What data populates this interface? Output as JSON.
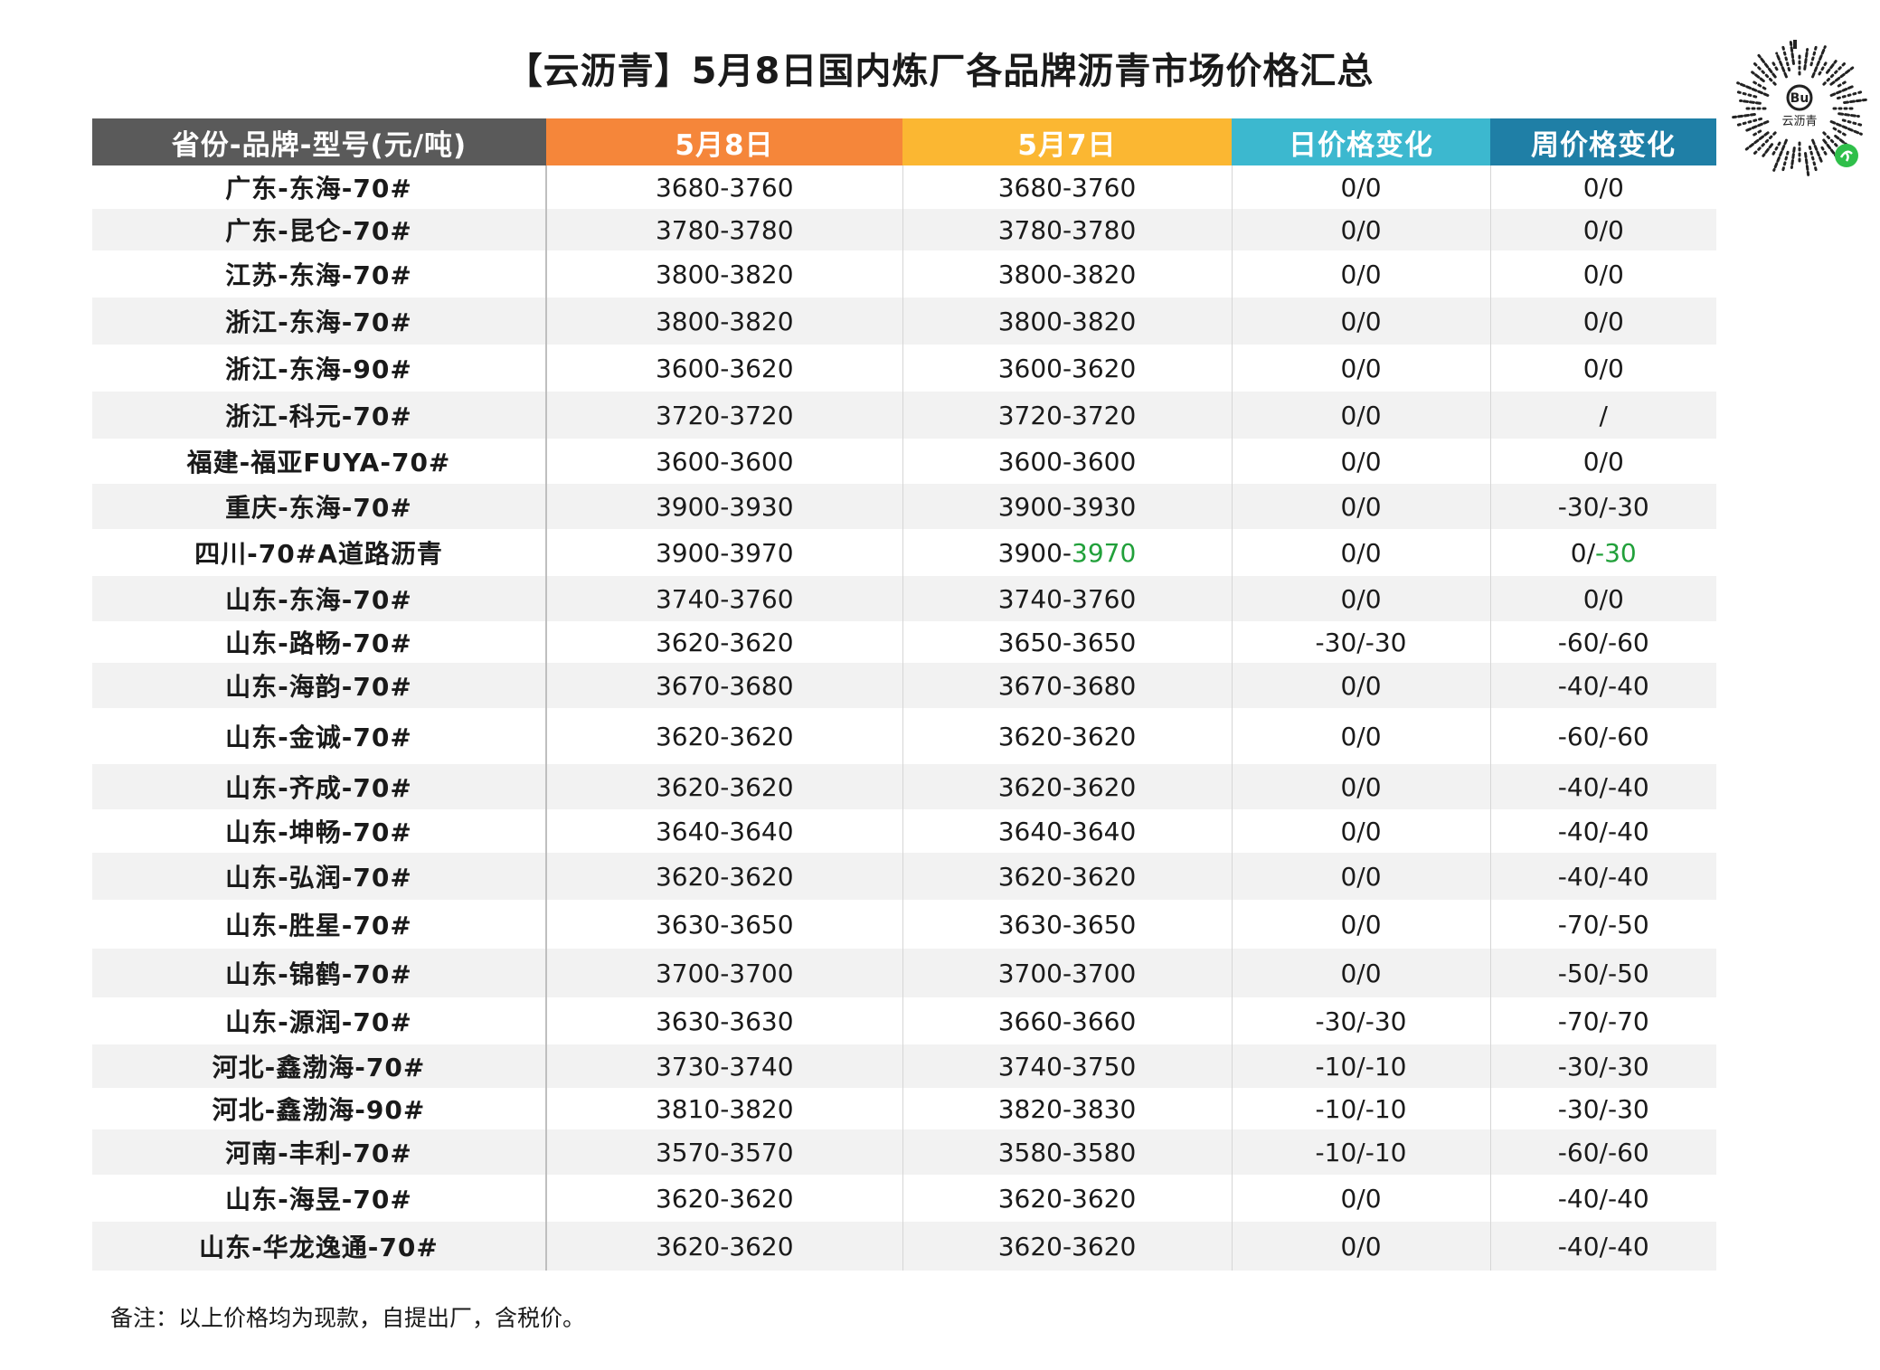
{
  "title": "【云沥青】5月8日国内炼厂各品牌沥青市场价格汇总",
  "logo_text": "云沥青",
  "headers": [
    "省份-品牌-型号(元/吨)",
    "5月8日",
    "5月7日",
    "日价格变化",
    "周价格变化"
  ],
  "colors": {
    "header_col1": "#5a5a5a",
    "header_col2": "#f5863a",
    "header_col3": "#fbb732",
    "header_col4": "#3cb8cf",
    "header_col5": "#1f7fa6",
    "decrease_green": "#21a03a"
  },
  "rows": [
    {
      "name": "广东-东海-70#",
      "may8": "3680-3760",
      "may7": "3680-3760",
      "day": "0/0",
      "week": "0/0"
    },
    {
      "name": "广东-昆仑-70#",
      "may8": "3780-3780",
      "may7": "3780-3780",
      "day": "0/0",
      "week": "0/0"
    },
    {
      "name": "江苏-东海-70#",
      "may8": "3800-3820",
      "may7": "3800-3820",
      "day": "0/0",
      "week": "0/0"
    },
    {
      "name": "浙江-东海-70#",
      "may8": "3800-3820",
      "may7": "3800-3820",
      "day": "0/0",
      "week": "0/0"
    },
    {
      "name": "浙江-东海-90#",
      "may8": "3600-3620",
      "may7": "3600-3620",
      "day": "0/0",
      "week": "0/0"
    },
    {
      "name": "浙江-科元-70#",
      "may8": "3720-3720",
      "may7": "3720-3720",
      "day": "0/0",
      "week": "/"
    },
    {
      "name": "福建-福亚FUYA-70#",
      "may8": "3600-3600",
      "may7": "3600-3600",
      "day": "0/0",
      "week": "0/0"
    },
    {
      "name": "重庆-东海-70#",
      "may8": "3900-3930",
      "may7": "3900-3930",
      "day": "0/0",
      "week": "-30/-30"
    },
    {
      "name": "四川-70#A道路沥青",
      "may8": "3900-3970",
      "may7_a": "3900-",
      "may7_b": "3970",
      "day": "0/0",
      "week_a": "0/",
      "week_b": "-30"
    },
    {
      "name": "山东-东海-70#",
      "may8": "3740-3760",
      "may7": "3740-3760",
      "day": "0/0",
      "week": "0/0"
    },
    {
      "name": "山东-路畅-70#",
      "may8": "3620-3620",
      "may7": "3650-3650",
      "day": "-30/-30",
      "week": "-60/-60"
    },
    {
      "name": "山东-海韵-70#",
      "may8": "3670-3680",
      "may7": "3670-3680",
      "day": "0/0",
      "week": "-40/-40"
    },
    {
      "name": "山东-金诚-70#",
      "may8": "3620-3620",
      "may7": "3620-3620",
      "day": "0/0",
      "week": "-60/-60"
    },
    {
      "name": "山东-齐成-70#",
      "may8": "3620-3620",
      "may7": "3620-3620",
      "day": "0/0",
      "week": "-40/-40"
    },
    {
      "name": "山东-坤畅-70#",
      "may8": "3640-3640",
      "may7": "3640-3640",
      "day": "0/0",
      "week": "-40/-40"
    },
    {
      "name": "山东-弘润-70#",
      "may8": "3620-3620",
      "may7": "3620-3620",
      "day": "0/0",
      "week": "-40/-40"
    },
    {
      "name": "山东-胜星-70#",
      "may8": "3630-3650",
      "may7": "3630-3650",
      "day": "0/0",
      "week": "-70/-50"
    },
    {
      "name": "山东-锦鹤-70#",
      "may8": "3700-3700",
      "may7": "3700-3700",
      "day": "0/0",
      "week": "-50/-50"
    },
    {
      "name": "山东-源润-70#",
      "may8": "3630-3630",
      "may7": "3660-3660",
      "day": "-30/-30",
      "week": "-70/-70"
    },
    {
      "name": "河北-鑫渤海-70#",
      "may8": "3730-3740",
      "may7": "3740-3750",
      "day": "-10/-10",
      "week": "-30/-30"
    },
    {
      "name": "河北-鑫渤海-90#",
      "may8": "3810-3820",
      "may7": "3820-3830",
      "day": "-10/-10",
      "week": "-30/-30"
    },
    {
      "name": "河南-丰利-70#",
      "may8": "3570-3570",
      "may7": "3580-3580",
      "day": "-10/-10",
      "week": "-60/-60"
    },
    {
      "name": "山东-海昱-70#",
      "may8": "3620-3620",
      "may7": "3620-3620",
      "day": "0/0",
      "week": "-40/-40"
    },
    {
      "name": "山东-华龙逸通-70#",
      "may8": "3620-3620",
      "may7": "3620-3620",
      "day": "0/0",
      "week": "-40/-40"
    }
  ],
  "note": "备注：以上价格均为现款，自提出厂，含税价。"
}
